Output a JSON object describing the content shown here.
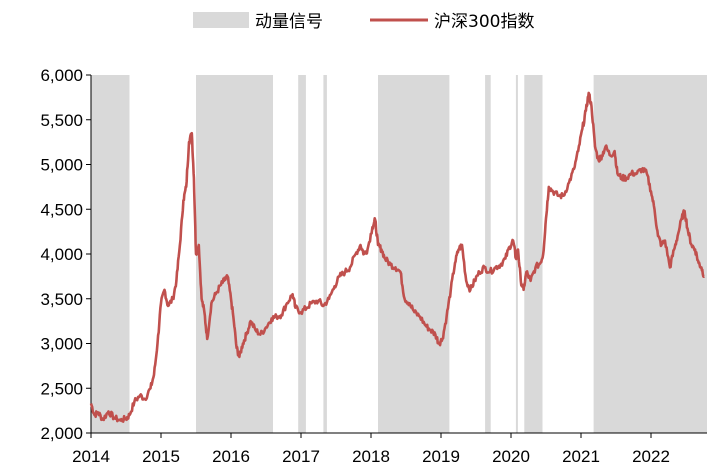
{
  "chart_data": {
    "type": "line",
    "legend": {
      "placement": "top-center",
      "items": [
        {
          "label": "动量信号",
          "kind": "band",
          "color": "#d9d9d9"
        },
        {
          "label": "沪深300指数",
          "kind": "line",
          "color": "#c0504d"
        }
      ]
    },
    "xlim": [
      2014.0,
      2022.8
    ],
    "ylim": [
      2000,
      6000
    ],
    "grid": false,
    "x_ticks": [
      2014,
      2015,
      2016,
      2017,
      2018,
      2019,
      2020,
      2021,
      2022
    ],
    "x_tick_labels": [
      "2014",
      "2015",
      "2016",
      "2017",
      "2018",
      "2019",
      "2020",
      "2021",
      "2022"
    ],
    "y_ticks": [
      2000,
      2500,
      3000,
      3500,
      4000,
      4500,
      5000,
      5500,
      6000
    ],
    "y_tick_labels": [
      "2,000",
      "2,500",
      "3,000",
      "3,500",
      "4,000",
      "4,500",
      "5,000",
      "5,500",
      "6,000"
    ],
    "signal_periods": [
      [
        2014.0,
        2014.55
      ],
      [
        2015.5,
        2016.6
      ],
      [
        2016.96,
        2017.07
      ],
      [
        2017.32,
        2017.37
      ],
      [
        2018.1,
        2019.12
      ],
      [
        2019.63,
        2019.71
      ],
      [
        2020.07,
        2020.09
      ],
      [
        2020.19,
        2020.45
      ],
      [
        2021.18,
        2022.8
      ]
    ],
    "series": [
      {
        "name": "沪深300指数",
        "color": "#c0504d",
        "points": [
          [
            2014.0,
            2330
          ],
          [
            2014.05,
            2200
          ],
          [
            2014.1,
            2230
          ],
          [
            2014.17,
            2150
          ],
          [
            2014.25,
            2240
          ],
          [
            2014.33,
            2170
          ],
          [
            2014.42,
            2140
          ],
          [
            2014.5,
            2160
          ],
          [
            2014.55,
            2200
          ],
          [
            2014.62,
            2350
          ],
          [
            2014.7,
            2420
          ],
          [
            2014.77,
            2380
          ],
          [
            2014.85,
            2500
          ],
          [
            2014.9,
            2650
          ],
          [
            2014.95,
            3000
          ],
          [
            2015.0,
            3450
          ],
          [
            2015.05,
            3600
          ],
          [
            2015.1,
            3420
          ],
          [
            2015.17,
            3500
          ],
          [
            2015.22,
            3700
          ],
          [
            2015.27,
            4100
          ],
          [
            2015.32,
            4600
          ],
          [
            2015.36,
            4750
          ],
          [
            2015.4,
            5250
          ],
          [
            2015.44,
            5350
          ],
          [
            2015.47,
            4850
          ],
          [
            2015.5,
            4000
          ],
          [
            2015.54,
            4100
          ],
          [
            2015.58,
            3500
          ],
          [
            2015.62,
            3350
          ],
          [
            2015.66,
            3050
          ],
          [
            2015.72,
            3450
          ],
          [
            2015.78,
            3550
          ],
          [
            2015.85,
            3650
          ],
          [
            2015.9,
            3700
          ],
          [
            2015.95,
            3750
          ],
          [
            2016.0,
            3500
          ],
          [
            2016.04,
            3250
          ],
          [
            2016.08,
            2950
          ],
          [
            2016.12,
            2850
          ],
          [
            2016.17,
            3000
          ],
          [
            2016.22,
            3100
          ],
          [
            2016.28,
            3250
          ],
          [
            2016.35,
            3150
          ],
          [
            2016.42,
            3100
          ],
          [
            2016.5,
            3180
          ],
          [
            2016.58,
            3280
          ],
          [
            2016.65,
            3300
          ],
          [
            2016.72,
            3320
          ],
          [
            2016.8,
            3450
          ],
          [
            2016.88,
            3550
          ],
          [
            2016.92,
            3400
          ],
          [
            2017.0,
            3350
          ],
          [
            2017.08,
            3400
          ],
          [
            2017.15,
            3450
          ],
          [
            2017.25,
            3480
          ],
          [
            2017.32,
            3420
          ],
          [
            2017.4,
            3500
          ],
          [
            2017.48,
            3640
          ],
          [
            2017.55,
            3750
          ],
          [
            2017.63,
            3800
          ],
          [
            2017.7,
            3850
          ],
          [
            2017.78,
            4000
          ],
          [
            2017.85,
            4100
          ],
          [
            2017.9,
            4000
          ],
          [
            2017.95,
            4050
          ],
          [
            2018.02,
            4300
          ],
          [
            2018.06,
            4380
          ],
          [
            2018.1,
            4100
          ],
          [
            2018.15,
            4050
          ],
          [
            2018.2,
            3950
          ],
          [
            2018.28,
            3880
          ],
          [
            2018.35,
            3850
          ],
          [
            2018.42,
            3800
          ],
          [
            2018.48,
            3500
          ],
          [
            2018.55,
            3450
          ],
          [
            2018.62,
            3350
          ],
          [
            2018.7,
            3300
          ],
          [
            2018.78,
            3200
          ],
          [
            2018.85,
            3150
          ],
          [
            2018.92,
            3100
          ],
          [
            2018.97,
            3000
          ],
          [
            2019.02,
            3050
          ],
          [
            2019.08,
            3300
          ],
          [
            2019.14,
            3600
          ],
          [
            2019.2,
            3900
          ],
          [
            2019.25,
            4050
          ],
          [
            2019.3,
            4100
          ],
          [
            2019.36,
            3700
          ],
          [
            2019.42,
            3600
          ],
          [
            2019.48,
            3700
          ],
          [
            2019.55,
            3800
          ],
          [
            2019.62,
            3850
          ],
          [
            2019.7,
            3800
          ],
          [
            2019.78,
            3850
          ],
          [
            2019.85,
            3880
          ],
          [
            2019.92,
            3950
          ],
          [
            2019.98,
            4080
          ],
          [
            2020.03,
            4150
          ],
          [
            2020.07,
            3950
          ],
          [
            2020.1,
            4050
          ],
          [
            2020.14,
            3700
          ],
          [
            2020.18,
            3600
          ],
          [
            2020.22,
            3800
          ],
          [
            2020.28,
            3700
          ],
          [
            2020.35,
            3850
          ],
          [
            2020.42,
            3900
          ],
          [
            2020.46,
            4000
          ],
          [
            2020.5,
            4400
          ],
          [
            2020.54,
            4750
          ],
          [
            2020.6,
            4700
          ],
          [
            2020.68,
            4650
          ],
          [
            2020.75,
            4650
          ],
          [
            2020.83,
            4800
          ],
          [
            2020.9,
            4950
          ],
          [
            2020.96,
            5150
          ],
          [
            2021.02,
            5400
          ],
          [
            2021.07,
            5600
          ],
          [
            2021.11,
            5800
          ],
          [
            2021.15,
            5650
          ],
          [
            2021.2,
            5200
          ],
          [
            2021.25,
            5050
          ],
          [
            2021.3,
            5100
          ],
          [
            2021.35,
            5200
          ],
          [
            2021.42,
            5100
          ],
          [
            2021.48,
            5150
          ],
          [
            2021.52,
            4900
          ],
          [
            2021.58,
            4850
          ],
          [
            2021.65,
            4850
          ],
          [
            2021.72,
            4900
          ],
          [
            2021.8,
            4900
          ],
          [
            2021.87,
            4950
          ],
          [
            2021.94,
            4900
          ],
          [
            2022.0,
            4700
          ],
          [
            2022.05,
            4500
          ],
          [
            2022.1,
            4200
          ],
          [
            2022.15,
            4100
          ],
          [
            2022.2,
            4150
          ],
          [
            2022.27,
            3850
          ],
          [
            2022.33,
            4050
          ],
          [
            2022.38,
            4200
          ],
          [
            2022.44,
            4400
          ],
          [
            2022.48,
            4480
          ],
          [
            2022.53,
            4250
          ],
          [
            2022.58,
            4100
          ],
          [
            2022.63,
            4050
          ],
          [
            2022.68,
            3900
          ],
          [
            2022.72,
            3850
          ],
          [
            2022.76,
            3750
          ]
        ]
      }
    ]
  }
}
